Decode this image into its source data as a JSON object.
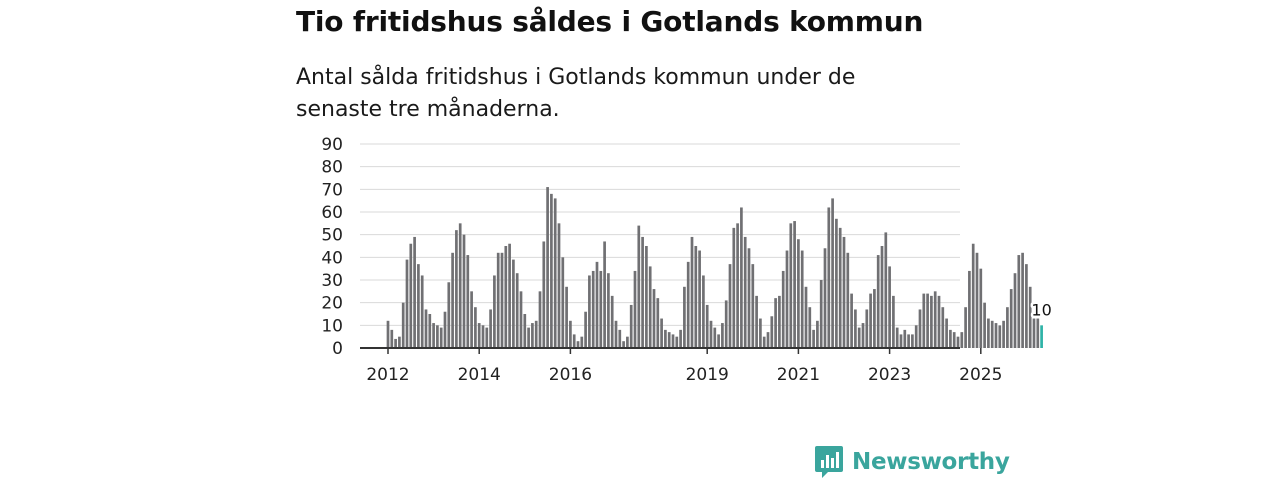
{
  "title": "Tio fritidshus såldes i Gotlands kommun",
  "subtitle": "Antal sålda fritidshus i Gotlands kommun under de senaste tre månaderna.",
  "brand": {
    "name": "Newsworthy"
  },
  "colors": {
    "bar": "#707073",
    "highlight": "#2fb3a7",
    "grid": "#d9d9d9",
    "axis": "#333333",
    "brand": "#3aa59d"
  },
  "chart_data": {
    "type": "bar",
    "x_start": "2012-01",
    "ylim": [
      0,
      90
    ],
    "y_ticks": [
      "0",
      "10",
      "20",
      "30",
      "40",
      "50",
      "60",
      "70",
      "80",
      "90"
    ],
    "x_ticks": [
      {
        "label": "2012",
        "at": "2012-01"
      },
      {
        "label": "2014",
        "at": "2014-01"
      },
      {
        "label": "2016",
        "at": "2016-01"
      },
      {
        "label": "2019",
        "at": "2019-01"
      },
      {
        "label": "2021",
        "at": "2021-01"
      },
      {
        "label": "2023",
        "at": "2023-01"
      },
      {
        "label": "2025",
        "at": "2025-01"
      }
    ],
    "values": [
      12,
      8,
      4,
      5,
      20,
      39,
      46,
      49,
      37,
      32,
      17,
      15,
      11,
      10,
      9,
      16,
      29,
      42,
      52,
      55,
      50,
      41,
      25,
      18,
      11,
      10,
      9,
      17,
      32,
      42,
      42,
      45,
      46,
      39,
      33,
      25,
      15,
      9,
      11,
      12,
      25,
      47,
      71,
      68,
      66,
      55,
      40,
      27,
      12,
      6,
      3,
      5,
      16,
      32,
      34,
      38,
      34,
      47,
      33,
      23,
      12,
      8,
      3,
      5,
      19,
      34,
      54,
      49,
      45,
      36,
      26,
      22,
      13,
      8,
      7,
      6,
      5,
      8,
      27,
      38,
      49,
      45,
      43,
      32,
      19,
      12,
      9,
      6,
      11,
      21,
      37,
      53,
      55,
      62,
      49,
      44,
      37,
      23,
      13,
      5,
      7,
      14,
      22,
      23,
      34,
      43,
      55,
      56,
      48,
      43,
      27,
      18,
      8,
      12,
      30,
      44,
      62,
      66,
      57,
      53,
      49,
      42,
      24,
      17,
      9,
      11,
      17,
      24,
      26,
      41,
      45,
      51,
      36,
      23,
      9,
      6,
      8,
      6,
      6,
      10,
      17,
      24,
      24,
      23,
      25,
      23,
      18,
      13,
      8,
      7,
      5,
      7,
      18,
      34,
      46,
      42,
      35,
      20,
      13,
      12,
      11,
      10,
      12,
      18,
      26,
      33,
      41,
      42,
      37,
      27,
      13,
      13,
      10
    ],
    "last_label": "10"
  }
}
